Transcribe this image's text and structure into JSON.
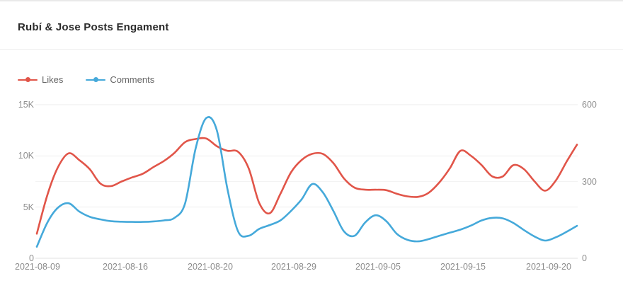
{
  "header": {
    "title": "Rubí & Jose Posts Engament"
  },
  "legend": {
    "items": [
      {
        "label": "Likes",
        "color": "#e15549"
      },
      {
        "label": "Comments",
        "color": "#45a9da"
      }
    ]
  },
  "chart_data": {
    "type": "line",
    "title": "Rubí & Jose Posts Engament",
    "smooth": true,
    "grid": true,
    "legend_position": "top-left",
    "x_labels": [
      "2021-08-09",
      "2021-08-16",
      "2021-08-20",
      "2021-08-29",
      "2021-09-05",
      "2021-09-15",
      "2021-09-20"
    ],
    "y_axis_left": {
      "tick_labels": [
        "0",
        "5K",
        "10K",
        "15K"
      ],
      "tick_values": [
        0,
        5000,
        10000,
        15000
      ],
      "min": 0,
      "max": 15000
    },
    "y_axis_right": {
      "tick_labels": [
        "0",
        "300",
        "600"
      ],
      "tick_values": [
        0,
        300,
        600
      ],
      "min": 0,
      "max": 600
    },
    "series": [
      {
        "name": "Likes",
        "axis": "left",
        "color": "#e15549",
        "values": [
          2400,
          6200,
          8900,
          10250,
          9600,
          8700,
          7300,
          7050,
          7500,
          7900,
          8250,
          8900,
          9500,
          10300,
          11350,
          11650,
          11700,
          10950,
          10500,
          10400,
          8800,
          5400,
          4400,
          6300,
          8400,
          9600,
          10200,
          10200,
          9300,
          7800,
          6900,
          6700,
          6700,
          6650,
          6300,
          6050,
          6000,
          6400,
          7400,
          8800,
          10500,
          10000,
          9100,
          8000,
          8000,
          9100,
          8700,
          7500,
          6600,
          7600,
          9400,
          11100
        ]
      },
      {
        "name": "Comments",
        "axis": "right",
        "color": "#45a9da",
        "values": [
          45,
          140,
          198,
          215,
          183,
          162,
          152,
          145,
          143,
          142,
          142,
          144,
          148,
          158,
          215,
          430,
          548,
          500,
          270,
          105,
          88,
          115,
          130,
          148,
          185,
          230,
          290,
          258,
          185,
          105,
          88,
          140,
          168,
          145,
          95,
          72,
          66,
          75,
          88,
          100,
          112,
          128,
          148,
          158,
          156,
          138,
          110,
          85,
          69,
          82,
          103,
          127
        ]
      }
    ]
  }
}
